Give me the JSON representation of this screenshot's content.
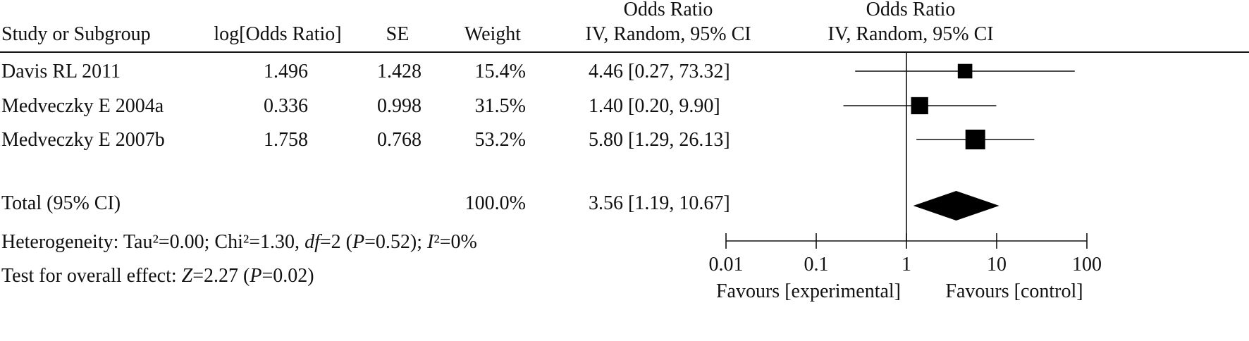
{
  "chart_data": {
    "type": "forest",
    "headers": {
      "study": "Study or Subgroup",
      "log_or": "log[Odds Ratio]",
      "se": "SE",
      "weight": "Weight",
      "or_title": "Odds Ratio",
      "or_method": "IV, Random, 95% CI",
      "plot_title": "Odds Ratio",
      "plot_method": "IV, Random, 95% CI"
    },
    "studies": [
      {
        "name": "Davis RL 2011",
        "log_or": "1.496",
        "se": "1.428",
        "weight": "15.4%",
        "weight_value": 15.4,
        "or_text": "4.46 [0.27, 73.32]",
        "or": 4.46,
        "lo": 0.27,
        "hi": 73.32
      },
      {
        "name": "Medveczky E 2004a",
        "log_or": "0.336",
        "se": "0.998",
        "weight": "31.5%",
        "weight_value": 31.5,
        "or_text": "1.40 [0.20, 9.90]",
        "or": 1.4,
        "lo": 0.2,
        "hi": 9.9
      },
      {
        "name": "Medveczky E 2007b",
        "log_or": "1.758",
        "se": "0.768",
        "weight": "53.2%",
        "weight_value": 53.2,
        "or_text": "5.80 [1.29, 26.13]",
        "or": 5.8,
        "lo": 1.29,
        "hi": 26.13
      }
    ],
    "total": {
      "label": "Total (95% CI)",
      "weight": "100.0%",
      "or_text": "3.56 [1.19, 10.67]",
      "or": 3.56,
      "lo": 1.19,
      "hi": 10.67
    },
    "heterogeneity": {
      "prefix": "Heterogeneity: Tau²=0.00; Chi²=1.30, ",
      "df_sym": "df",
      "df_val": "=2 (",
      "p_sym": "P",
      "p_val": "=0.52); ",
      "i2_sym": "I",
      "i2_val": "²=0%"
    },
    "overall": {
      "prefix": "Test for overall effect: ",
      "z_sym": "Z",
      "z_val": "=2.27 (",
      "p_sym": "P",
      "p_val": "=0.02)"
    },
    "axis": {
      "scale": "log",
      "range": [
        0.01,
        100
      ],
      "null_value": 1,
      "ticks": [
        0.01,
        0.1,
        1,
        10,
        100
      ],
      "tick_labels": [
        "0.01",
        "0.1",
        "1",
        "10",
        "100"
      ]
    },
    "favours_left": "Favours [experimental]",
    "favours_right": "Favours [control]"
  }
}
